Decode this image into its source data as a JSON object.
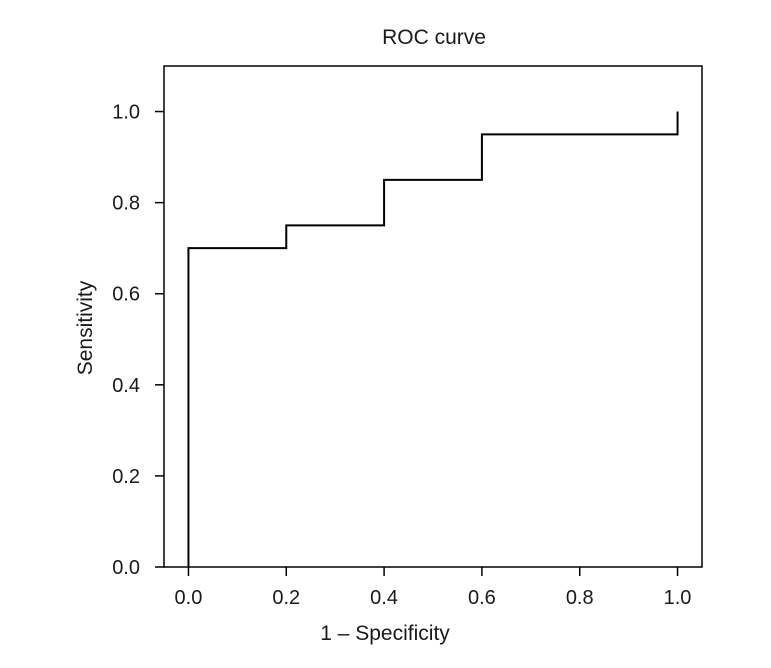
{
  "chart_data": {
    "type": "line",
    "title": "ROC curve",
    "xlabel": "1 – Specificity",
    "ylabel": "Sensitivity",
    "xlim": [
      -0.05,
      1.05
    ],
    "ylim": [
      0.0,
      1.1
    ],
    "xticks": [
      "0.0",
      "0.2",
      "0.4",
      "0.6",
      "0.8",
      "1.0"
    ],
    "yticks": [
      "0.0",
      "0.2",
      "0.4",
      "0.6",
      "0.8",
      "1.0"
    ],
    "grid": false,
    "series": [
      {
        "x": [
          0.0,
          0.0,
          0.2,
          0.2,
          0.4,
          0.4,
          0.6,
          0.6,
          1.0,
          1.0
        ],
        "y": [
          0.0,
          0.7,
          0.7,
          0.75,
          0.75,
          0.85,
          0.85,
          0.95,
          0.95,
          1.0
        ],
        "color": "#000000"
      }
    ]
  }
}
